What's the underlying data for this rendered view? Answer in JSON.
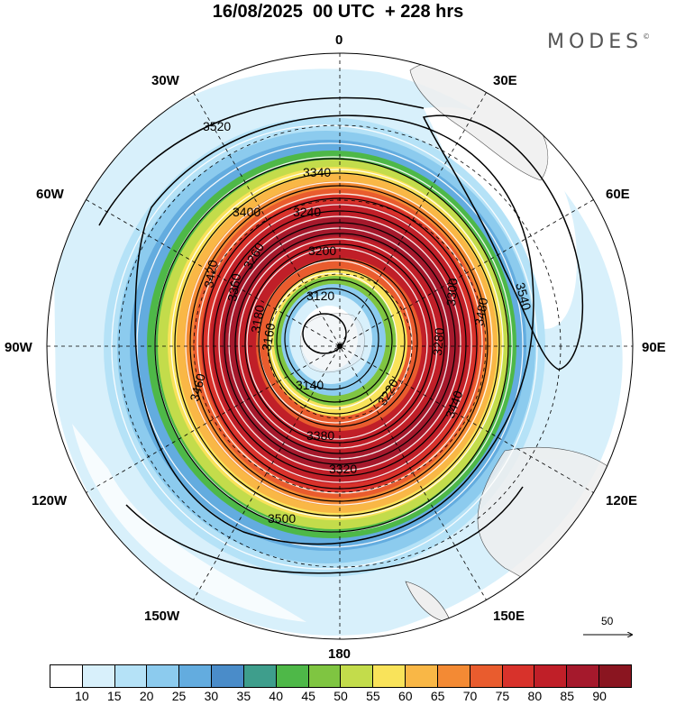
{
  "header": {
    "title": "16/08/2025  00 UTC  + 228 hrs",
    "brand": "MODES",
    "brand_mark": "©"
  },
  "map": {
    "projection": "polar stereographic (south pole)",
    "longitude_labels": {
      "n": "0",
      "ne30": "30E",
      "ne60": "60E",
      "e": "90E",
      "se120": "120E",
      "se150": "150E",
      "s": "180",
      "sw150": "150W",
      "sw120": "120W",
      "w": "90W",
      "nw60": "60W",
      "nw30": "30W"
    },
    "contour_field": "geopotential height (m)",
    "contour_labels": [
      "3120",
      "3140",
      "3160",
      "3180",
      "3200",
      "3220",
      "3240",
      "3260",
      "3280",
      "3300",
      "3320",
      "3340",
      "3360",
      "3380",
      "3400",
      "3420",
      "3440",
      "3460",
      "3480",
      "3500",
      "3520",
      "3540"
    ],
    "wind_reference": {
      "value": "50",
      "icon": "arrow-right-icon"
    }
  },
  "colorbar": {
    "colors": [
      "#ffffff",
      "#d8f0fb",
      "#b5e2f7",
      "#8ccbee",
      "#63acdf",
      "#4a8cc9",
      "#3e9e8c",
      "#4eb848",
      "#7fc541",
      "#c3dc4b",
      "#f9e35a",
      "#f9b746",
      "#f38a34",
      "#e95c2e",
      "#d8322b",
      "#c01f28",
      "#a5192c",
      "#8a1520"
    ],
    "tick_labels": [
      "10",
      "15",
      "20",
      "25",
      "30",
      "35",
      "40",
      "45",
      "50",
      "55",
      "60",
      "65",
      "70",
      "75",
      "80",
      "85",
      "90"
    ]
  }
}
